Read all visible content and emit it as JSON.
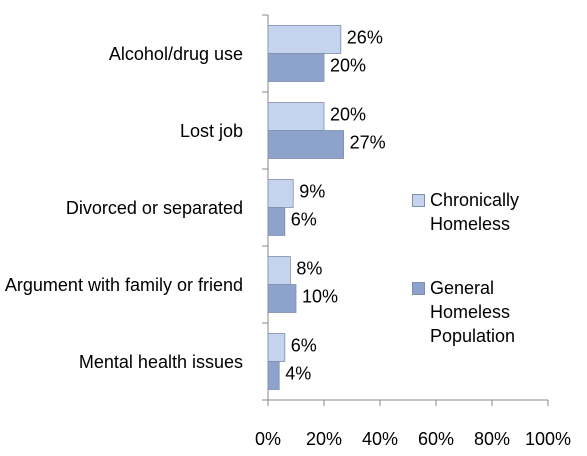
{
  "chart_data": {
    "type": "hbar",
    "categories": [
      "Alcohol/drug use",
      "Lost job",
      "Divorced or separated",
      "Argument with family or friend",
      "Mental health issues"
    ],
    "series": [
      {
        "name": "Chronically Homeless",
        "color": "#c6d3ee",
        "values": [
          26,
          20,
          9,
          8,
          6
        ],
        "value_labels": [
          "26%",
          "20%",
          "9%",
          "8%",
          "6%"
        ]
      },
      {
        "name": "General Homeless Population",
        "color": "#8ea3cc",
        "values": [
          20,
          27,
          6,
          10,
          4
        ],
        "value_labels": [
          "20%",
          "27%",
          "6%",
          "10%",
          "4%"
        ]
      }
    ],
    "xlim": [
      0,
      100
    ],
    "xticks": [
      {
        "value": 0,
        "label": "0%"
      },
      {
        "value": 20,
        "label": "20%"
      },
      {
        "value": 40,
        "label": "40%"
      },
      {
        "value": 60,
        "label": "60%"
      },
      {
        "value": 80,
        "label": "80%"
      },
      {
        "value": 100,
        "label": "100%"
      }
    ],
    "legend": "right"
  }
}
